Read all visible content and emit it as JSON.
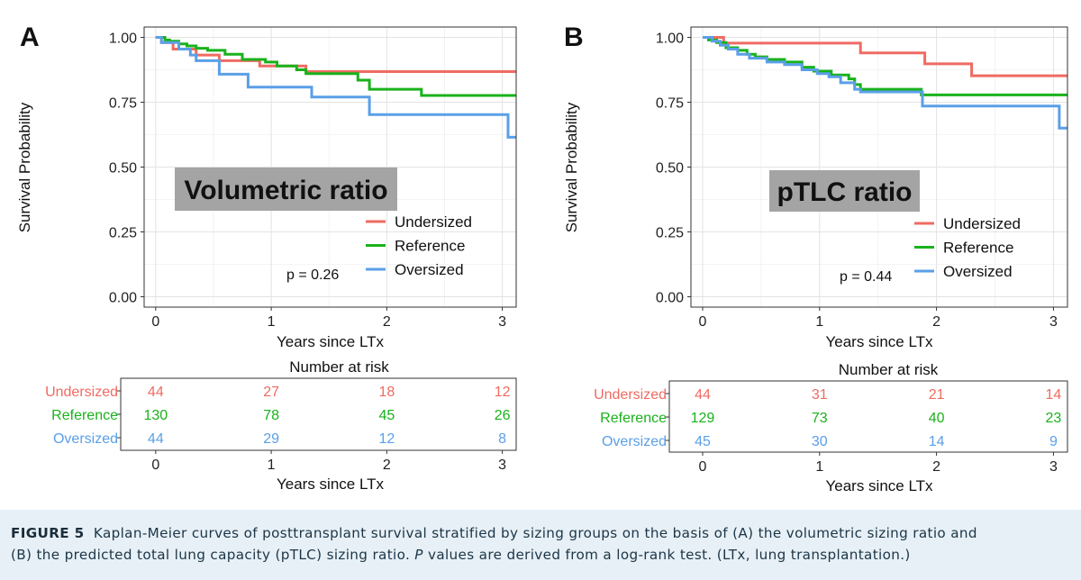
{
  "colors": {
    "Undersized": "#ef6b62",
    "Reference": "#19b21b",
    "Oversized": "#5a9fe8"
  },
  "axis_labels": {
    "ylabel": "Survival Probability",
    "xlabel": "Years since LTx",
    "risk_title": "Number at risk"
  },
  "chart_data": [
    {
      "panel": "A",
      "type": "line",
      "step": true,
      "title": "Volumetric ratio",
      "xlabel": "Years since LTx",
      "ylabel": "Survival Probability",
      "xlim": [
        -0.1,
        3.12
      ],
      "ylim": [
        -0.04,
        1.04
      ],
      "x_ticks": [
        0,
        1,
        2,
        3
      ],
      "y_ticks": [
        0,
        0.25,
        0.5,
        0.75,
        1.0
      ],
      "y_tick_labels": [
        "0.00",
        "0.25",
        "0.50",
        "0.75",
        "1.00"
      ],
      "p_value": "p = 0.26",
      "legend": [
        "Undersized",
        "Reference",
        "Oversized"
      ],
      "series": [
        {
          "name": "Undersized",
          "x": [
            0,
            0.05,
            0.15,
            0.35,
            0.55,
            0.9,
            1.3,
            3.12
          ],
          "y": [
            1.0,
            0.98,
            0.955,
            0.932,
            0.91,
            0.89,
            0.868,
            0.868
          ]
        },
        {
          "name": "Reference",
          "x": [
            0,
            0.08,
            0.12,
            0.2,
            0.27,
            0.35,
            0.45,
            0.6,
            0.75,
            0.95,
            1.05,
            1.22,
            1.3,
            1.75,
            1.85,
            2.3,
            3.12
          ],
          "y": [
            1.0,
            0.99,
            0.985,
            0.975,
            0.967,
            0.958,
            0.95,
            0.935,
            0.915,
            0.905,
            0.89,
            0.875,
            0.86,
            0.835,
            0.8,
            0.776,
            0.776
          ]
        },
        {
          "name": "Oversized",
          "x": [
            0,
            0.05,
            0.2,
            0.3,
            0.35,
            0.55,
            0.8,
            1.35,
            1.85,
            3.05,
            3.12
          ],
          "y": [
            1.0,
            0.98,
            0.955,
            0.932,
            0.91,
            0.858,
            0.808,
            0.77,
            0.702,
            0.615,
            0.615
          ]
        }
      ],
      "risk_table": {
        "rows": [
          {
            "name": "Undersized",
            "values": [
              44,
              27,
              18,
              12
            ]
          },
          {
            "name": "Reference",
            "values": [
              130,
              78,
              45,
              26
            ]
          },
          {
            "name": "Oversized",
            "values": [
              44,
              29,
              12,
              8
            ]
          }
        ],
        "x": [
          0,
          1,
          2,
          3
        ]
      }
    },
    {
      "panel": "B",
      "type": "line",
      "step": true,
      "title": "pTLC ratio",
      "xlabel": "Years since LTx",
      "ylabel": "Survival Probability",
      "xlim": [
        -0.1,
        3.12
      ],
      "ylim": [
        -0.04,
        1.04
      ],
      "x_ticks": [
        0,
        1,
        2,
        3
      ],
      "y_ticks": [
        0,
        0.25,
        0.5,
        0.75,
        1.0
      ],
      "y_tick_labels": [
        "0.00",
        "0.25",
        "0.50",
        "0.75",
        "1.00"
      ],
      "p_value": "p = 0.44",
      "legend": [
        "Undersized",
        "Reference",
        "Oversized"
      ],
      "series": [
        {
          "name": "Undersized",
          "x": [
            0,
            0.18,
            1.35,
            1.9,
            2.3,
            3.12
          ],
          "y": [
            1.0,
            0.978,
            0.94,
            0.898,
            0.852,
            0.852
          ]
        },
        {
          "name": "Reference",
          "x": [
            0,
            0.05,
            0.12,
            0.2,
            0.3,
            0.38,
            0.45,
            0.55,
            0.7,
            0.85,
            0.95,
            1.1,
            1.25,
            1.3,
            1.35,
            1.87,
            3.12
          ],
          "y": [
            1.0,
            0.99,
            0.98,
            0.96,
            0.95,
            0.935,
            0.925,
            0.915,
            0.905,
            0.885,
            0.87,
            0.855,
            0.84,
            0.818,
            0.8,
            0.778,
            0.778
          ]
        },
        {
          "name": "Oversized",
          "x": [
            0,
            0.08,
            0.15,
            0.22,
            0.3,
            0.4,
            0.55,
            0.7,
            0.85,
            0.98,
            1.08,
            1.18,
            1.3,
            1.35,
            1.88,
            3.05,
            3.12
          ],
          "y": [
            1.0,
            0.985,
            0.97,
            0.955,
            0.935,
            0.92,
            0.905,
            0.895,
            0.875,
            0.86,
            0.848,
            0.825,
            0.8,
            0.79,
            0.735,
            0.65,
            0.65
          ]
        }
      ],
      "risk_table": {
        "rows": [
          {
            "name": "Undersized",
            "values": [
              44,
              31,
              21,
              14
            ]
          },
          {
            "name": "Reference",
            "values": [
              129,
              73,
              40,
              23
            ]
          },
          {
            "name": "Oversized",
            "values": [
              45,
              30,
              14,
              9
            ]
          }
        ],
        "x": [
          0,
          1,
          2,
          3
        ]
      }
    }
  ],
  "caption": {
    "figure_label": "FIGURE 5",
    "line1": "Kaplan-Meier curves of posttransplant survival stratified by sizing groups on the basis of (A) the volumetric sizing ratio and",
    "line2_pre": "(B) the predicted total lung capacity (pTLC) sizing ratio. ",
    "line2_p": "P",
    "line2_post": " values are derived from a log-rank test. (LTx, lung transplantation.)"
  }
}
